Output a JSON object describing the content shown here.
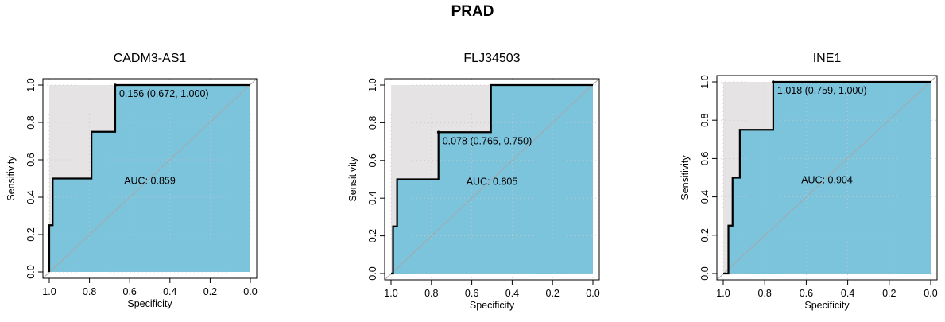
{
  "title": "PRAD",
  "chart_data": [
    {
      "type": "line",
      "title": "CADM3-AS1",
      "xlabel": "Specificity",
      "ylabel": "Sensitivity",
      "xlim": [
        1.0,
        0.0
      ],
      "ylim": [
        0.0,
        1.0
      ],
      "xticks": [
        "1.0",
        "0.8",
        "0.6",
        "0.4",
        "0.2",
        "0.0"
      ],
      "yticks": [
        "0.0",
        "0.2",
        "0.4",
        "0.6",
        "0.8",
        "1.0"
      ],
      "grid": true,
      "auc_label": "AUC: 0.859",
      "threshold_label": "0.156 (0.672, 1.000)",
      "threshold_point": [
        0.672,
        1.0
      ],
      "fill_colors": {
        "auc": "#7cc3dc",
        "ci": "#e5e3e3"
      },
      "roc": {
        "specificity": [
          1.0,
          1.0,
          0.983,
          0.983,
          0.966,
          0.966,
          0.79,
          0.79,
          0.672,
          0.672,
          0.0
        ],
        "sensitivity": [
          0.0,
          0.25,
          0.25,
          0.5,
          0.5,
          0.5,
          0.5,
          0.75,
          0.75,
          1.0,
          1.0
        ]
      },
      "ci_upper": {
        "specificity": [
          1.0,
          1.0,
          0.672,
          0.672
        ],
        "sensitivity": [
          0.0,
          1.0,
          1.0,
          1.0
        ]
      }
    },
    {
      "type": "line",
      "title": "FLJ34503",
      "xlabel": "Specificity",
      "ylabel": "Sensitivity",
      "xlim": [
        1.0,
        0.0
      ],
      "ylim": [
        0.0,
        1.0
      ],
      "xticks": [
        "1.0",
        "0.8",
        "0.6",
        "0.4",
        "0.2",
        "0.0"
      ],
      "yticks": [
        "0.0",
        "0.2",
        "0.4",
        "0.6",
        "0.8",
        "1.0"
      ],
      "grid": true,
      "auc_label": "AUC: 0.805",
      "threshold_label": "0.078 (0.765, 0.750)",
      "threshold_point": [
        0.765,
        0.75
      ],
      "fill_colors": {
        "auc": "#7cc3dc",
        "ci": "#e5e3e3"
      },
      "roc": {
        "specificity": [
          1.0,
          0.99,
          0.99,
          0.97,
          0.97,
          0.765,
          0.765,
          0.505,
          0.505,
          0.0
        ],
        "sensitivity": [
          0.0,
          0.0,
          0.25,
          0.25,
          0.5,
          0.5,
          0.75,
          0.75,
          1.0,
          1.0
        ]
      },
      "ci_upper": {
        "specificity": [
          1.0,
          1.0,
          0.765,
          0.765,
          0.505,
          0.505
        ],
        "sensitivity": [
          0.0,
          1.0,
          1.0,
          1.0,
          1.0,
          1.0
        ]
      }
    },
    {
      "type": "line",
      "title": "INE1",
      "xlabel": "Specificity",
      "ylabel": "Sensitivity",
      "xlim": [
        1.0,
        0.0
      ],
      "ylim": [
        0.0,
        1.0
      ],
      "xticks": [
        "1.0",
        "0.8",
        "0.6",
        "0.4",
        "0.2",
        "0.0"
      ],
      "yticks": [
        "0.0",
        "0.2",
        "0.4",
        "0.6",
        "0.8",
        "1.0"
      ],
      "grid": true,
      "auc_label": "AUC: 0.904",
      "threshold_label": "1.018 (0.759, 1.000)",
      "threshold_point": [
        0.759,
        1.0
      ],
      "fill_colors": {
        "auc": "#7cc3dc",
        "ci": "#e5e3e3"
      },
      "roc": {
        "specificity": [
          1.0,
          0.975,
          0.975,
          0.955,
          0.955,
          0.92,
          0.92,
          0.759,
          0.759,
          0.0
        ],
        "sensitivity": [
          0.0,
          0.0,
          0.25,
          0.25,
          0.5,
          0.5,
          0.75,
          0.75,
          1.0,
          1.0
        ]
      },
      "ci_upper": {
        "specificity": [
          1.0,
          1.0,
          0.759,
          0.759
        ],
        "sensitivity": [
          0.0,
          1.0,
          1.0,
          1.0
        ]
      }
    }
  ]
}
